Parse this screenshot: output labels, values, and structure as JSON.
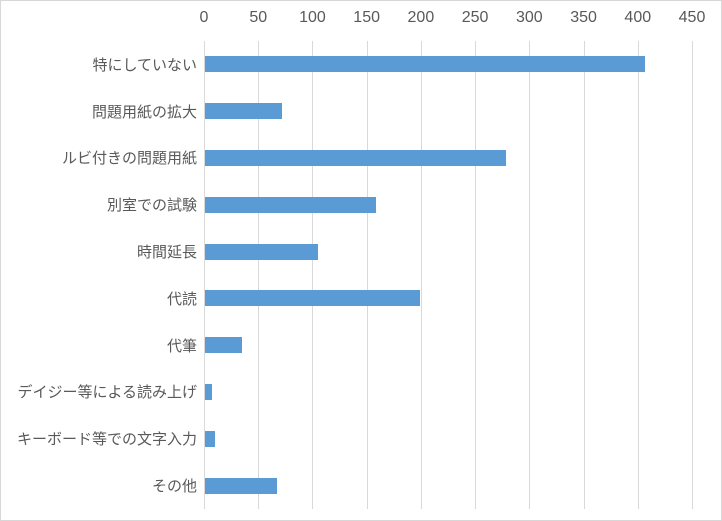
{
  "chart_data": {
    "type": "bar",
    "orientation": "horizontal",
    "title": "",
    "xlabel": "",
    "ylabel": "",
    "axis_position": "top",
    "legend": "none",
    "grid": "vertical-only",
    "xlim": [
      0,
      450
    ],
    "tick_interval": 50,
    "tick_labels": [
      "0",
      "50",
      "100",
      "150",
      "200",
      "250",
      "300",
      "350",
      "400",
      "450"
    ],
    "categories": [
      "特にしていない",
      "問題用紙の拡大",
      "ルビ付きの問題用紙",
      "別室での試験",
      "時間延長",
      "代読",
      "代筆",
      "デイジー等による読み上げ",
      "キーボード等での文字入力",
      "その他"
    ],
    "values": [
      406,
      71,
      278,
      158,
      104,
      198,
      34,
      6,
      9,
      66
    ],
    "colors": {
      "bar": "#5B9BD5",
      "gridline": "#D9D9D9",
      "text": "#595959",
      "border": "#D7D7D7",
      "background": "#FFFFFF"
    }
  }
}
